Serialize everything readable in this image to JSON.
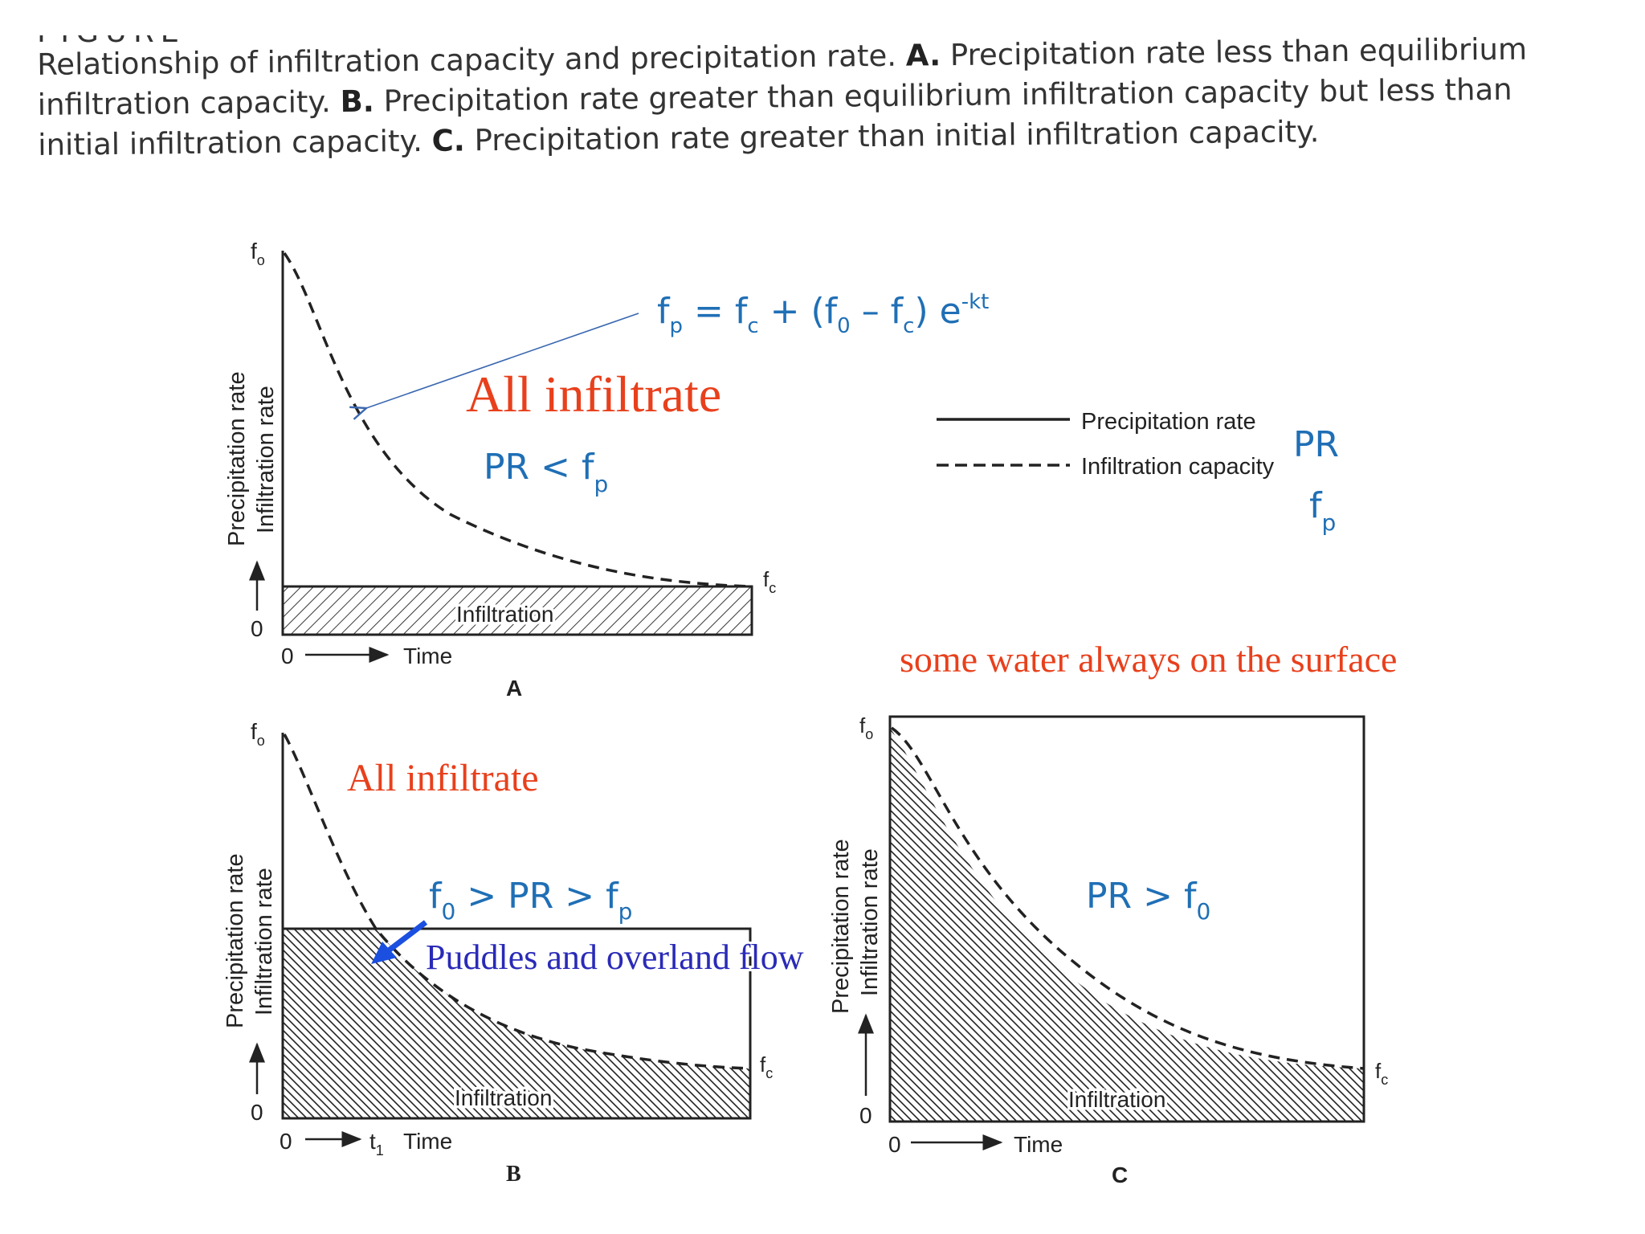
{
  "caption": {
    "header_fragment": "FIGURE",
    "line1_pre": "Relationship of infiltration capacity and precipitation rate.",
    "label_a": "A.",
    "line1_post": "Precipitation rate less than equilibrium",
    "line2_pre": "infiltration capacity.",
    "label_b": "B.",
    "line2_post": "Precipitation rate greater than equilibrium infiltration capacity but less than",
    "line3_pre": "initial infiltration capacity.",
    "label_c": "C.",
    "line3_post": "Precipitation rate greater than initial infiltration capacity."
  },
  "common": {
    "f0": "f",
    "f0_sub": "o",
    "fc": "f",
    "fc_sub": "c",
    "zero": "0",
    "time": "Time",
    "infiltration": "Infiltration",
    "ylabel_outer": "Precipitation rate",
    "ylabel_inner": "Infiltration rate"
  },
  "panel_a": {
    "letter": "A"
  },
  "panel_b": {
    "letter": "B",
    "t1": "t",
    "t1_sub": "1"
  },
  "panel_c": {
    "letter": "C"
  },
  "legend": {
    "precip_label": "Precipitation rate",
    "infil_label": "Infiltration capacity"
  },
  "annotations": {
    "equation_fp": "f",
    "equation_fp_sub": "p",
    "equation_mid1": " = f",
    "equation_mid1_sub": "c",
    "equation_mid2": " + (f",
    "equation_mid2_sub": "0",
    "equation_mid3": " – f",
    "equation_mid3_sub": "c",
    "equation_mid4": ") e",
    "equation_sup": "-kt",
    "all_infiltrate_a": "All infiltrate",
    "pr_lt_fp": "PR < f",
    "pr_lt_fp_sub": "p",
    "legend_pr": "PR",
    "legend_fp": "f",
    "legend_fp_sub": "p",
    "surface_note": "some water always on the surface",
    "all_infiltrate_b": "All infiltrate",
    "b_relation_pre": "f",
    "b_relation_sub0": "0",
    "b_relation_mid": " > PR > f",
    "b_relation_subp": "p",
    "puddles": "Puddles and overland flow",
    "c_relation": "PR > f",
    "c_relation_sub": "0"
  },
  "colors": {
    "ink": "#222222",
    "annotation_red": "#e8401c",
    "annotation_blue": "#1f6fb5",
    "puddle_blue": "#2a2ab8",
    "arrow_blue": "#1a4fe0",
    "leader_blue": "#3a68b0"
  }
}
